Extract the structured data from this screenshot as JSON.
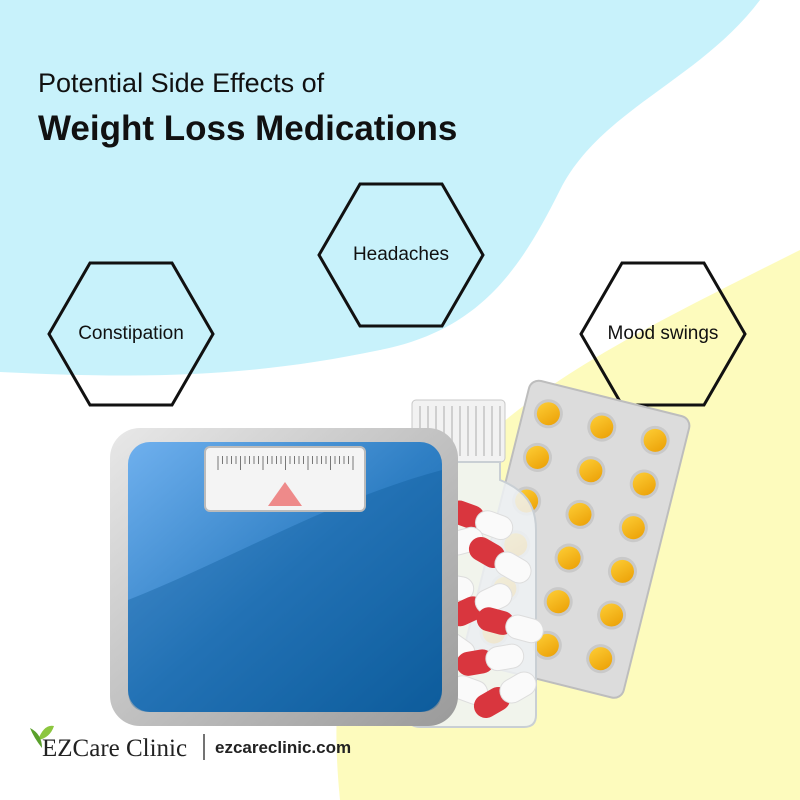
{
  "header": {
    "title_line1": "Potential Side Effects of",
    "title_line2": "Weight Loss Medications"
  },
  "side_effects": [
    {
      "label": "Constipation"
    },
    {
      "label": "Headaches"
    },
    {
      "label": "Mood swings"
    }
  ],
  "footer": {
    "brand": "EZCare Clinic",
    "website": "ezcareclinic.com"
  }
}
